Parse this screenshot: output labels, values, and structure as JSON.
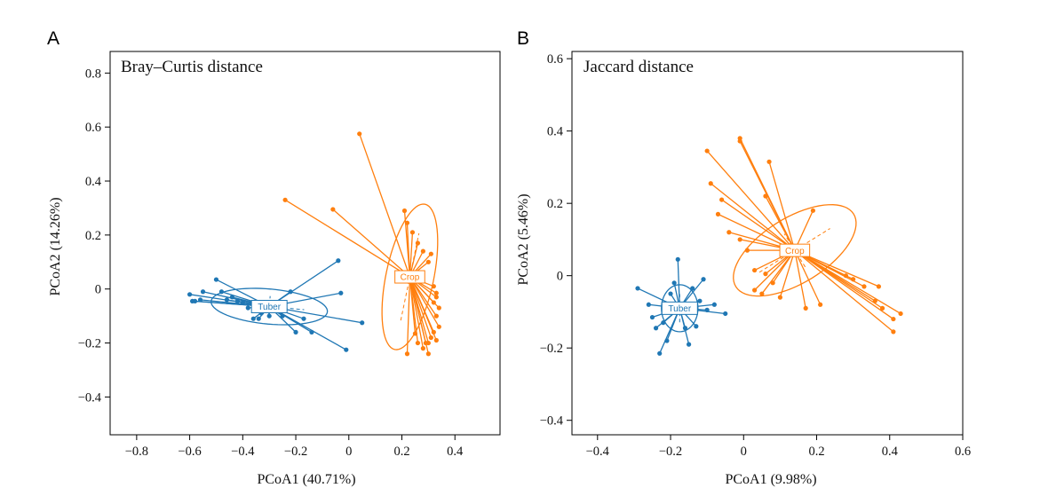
{
  "chart_data": [
    {
      "type": "scatter",
      "panel_letter": "A",
      "title": "Bray–Curtis distance",
      "xlabel": "PCoA1 (40.71%)",
      "ylabel": "PCoA2 (14.26%)",
      "xlim": [
        -0.9,
        0.57
      ],
      "ylim": [
        -0.54,
        0.88
      ],
      "xticks": [
        -0.8,
        -0.6,
        -0.4,
        -0.2,
        0,
        0.2,
        0.4
      ],
      "yticks": [
        -0.4,
        -0.2,
        0,
        0.2,
        0.4,
        0.6,
        0.8
      ],
      "xtick_labels": [
        "−0.8",
        "−0.6",
        "−0.4",
        "−0.2",
        "0",
        "0.2",
        "0.4"
      ],
      "ytick_labels": [
        "−0.4",
        "−0.2",
        "0",
        "0.2",
        "0.4",
        "0.6",
        "0.8"
      ],
      "grid": false,
      "series": [
        {
          "name": "Tuber",
          "color": "#1f77b4",
          "centroid": [
            -0.3,
            -0.065
          ],
          "ellipse": {
            "rx": 0.22,
            "ry": 0.065,
            "angle_deg": -5
          },
          "points": [
            [
              -0.59,
              -0.045
            ],
            [
              -0.6,
              -0.02
            ],
            [
              -0.58,
              -0.045
            ],
            [
              -0.56,
              -0.04
            ],
            [
              -0.55,
              -0.01
            ],
            [
              -0.5,
              0.035
            ],
            [
              -0.48,
              -0.01
            ],
            [
              -0.46,
              -0.04
            ],
            [
              -0.44,
              -0.03
            ],
            [
              -0.42,
              -0.045
            ],
            [
              -0.4,
              -0.05
            ],
            [
              -0.38,
              -0.07
            ],
            [
              -0.36,
              -0.11
            ],
            [
              -0.34,
              -0.11
            ],
            [
              -0.33,
              -0.09
            ],
            [
              -0.3,
              -0.1
            ],
            [
              -0.27,
              -0.06
            ],
            [
              -0.25,
              -0.1
            ],
            [
              -0.22,
              -0.01
            ],
            [
              -0.2,
              -0.16
            ],
            [
              -0.17,
              -0.11
            ],
            [
              -0.14,
              -0.16
            ],
            [
              -0.04,
              0.105
            ],
            [
              -0.03,
              -0.015
            ],
            [
              -0.01,
              -0.225
            ],
            [
              0.05,
              -0.125
            ]
          ]
        },
        {
          "name": "Crop",
          "color": "#ff7f0e",
          "centroid": [
            0.23,
            0.045
          ],
          "ellipse": {
            "rx": 0.275,
            "ry": 0.09,
            "angle_deg": 78
          },
          "points": [
            [
              -0.24,
              0.33
            ],
            [
              -0.06,
              0.295
            ],
            [
              0.04,
              0.575
            ],
            [
              0.21,
              0.29
            ],
            [
              0.22,
              0.245
            ],
            [
              0.24,
              0.21
            ],
            [
              0.26,
              0.17
            ],
            [
              0.28,
              0.14
            ],
            [
              0.3,
              0.1
            ],
            [
              0.31,
              0.13
            ],
            [
              0.32,
              0.01
            ],
            [
              0.33,
              -0.015
            ],
            [
              0.33,
              -0.03
            ],
            [
              0.32,
              -0.05
            ],
            [
              0.34,
              -0.07
            ],
            [
              0.33,
              -0.1
            ],
            [
              0.34,
              -0.14
            ],
            [
              0.32,
              -0.16
            ],
            [
              0.31,
              -0.18
            ],
            [
              0.33,
              -0.19
            ],
            [
              0.3,
              -0.2
            ],
            [
              0.29,
              -0.2
            ],
            [
              0.26,
              -0.2
            ],
            [
              0.28,
              -0.22
            ],
            [
              0.3,
              -0.24
            ],
            [
              0.25,
              -0.165
            ],
            [
              0.22,
              -0.24
            ]
          ]
        }
      ]
    },
    {
      "type": "scatter",
      "panel_letter": "B",
      "title": "Jaccard distance",
      "xlabel": "PCoA1 (9.98%)",
      "ylabel": "PCoA2 (5.46%)",
      "xlim": [
        -0.47,
        0.6
      ],
      "ylim": [
        -0.44,
        0.62
      ],
      "xticks": [
        -0.4,
        -0.2,
        0,
        0.2,
        0.4,
        0.6
      ],
      "yticks": [
        -0.4,
        -0.2,
        0,
        0.2,
        0.4,
        0.6
      ],
      "xtick_labels": [
        "−0.4",
        "−0.2",
        "0",
        "0.2",
        "0.4",
        "0.6"
      ],
      "ytick_labels": [
        "−0.4",
        "−0.2",
        "0",
        "0.2",
        "0.4",
        "0.6"
      ],
      "grid": false,
      "series": [
        {
          "name": "Tuber",
          "color": "#1f77b4",
          "centroid": [
            -0.175,
            -0.09
          ],
          "ellipse": {
            "rx": 0.05,
            "ry": 0.065,
            "angle_deg": 0
          },
          "points": [
            [
              -0.29,
              -0.035
            ],
            [
              -0.26,
              -0.08
            ],
            [
              -0.25,
              -0.115
            ],
            [
              -0.24,
              -0.145
            ],
            [
              -0.23,
              -0.215
            ],
            [
              -0.22,
              -0.13
            ],
            [
              -0.21,
              -0.18
            ],
            [
              -0.2,
              -0.05
            ],
            [
              -0.19,
              -0.02
            ],
            [
              -0.18,
              0.045
            ],
            [
              -0.17,
              -0.1
            ],
            [
              -0.16,
              -0.145
            ],
            [
              -0.15,
              -0.19
            ],
            [
              -0.14,
              -0.035
            ],
            [
              -0.13,
              -0.14
            ],
            [
              -0.12,
              -0.07
            ],
            [
              -0.11,
              -0.01
            ],
            [
              -0.1,
              -0.095
            ],
            [
              -0.08,
              -0.08
            ],
            [
              -0.05,
              -0.105
            ]
          ]
        },
        {
          "name": "Crop",
          "color": "#ff7f0e",
          "centroid": [
            0.14,
            0.07
          ],
          "ellipse": {
            "rx": 0.19,
            "ry": 0.09,
            "angle_deg": 32
          },
          "points": [
            [
              -0.1,
              0.345
            ],
            [
              -0.09,
              0.255
            ],
            [
              -0.07,
              0.17
            ],
            [
              -0.06,
              0.21
            ],
            [
              -0.01,
              0.38
            ],
            [
              -0.01,
              0.372
            ],
            [
              -0.04,
              0.12
            ],
            [
              -0.01,
              0.1
            ],
            [
              0.01,
              0.07
            ],
            [
              0.03,
              0.015
            ],
            [
              0.06,
              0.005
            ],
            [
              0.08,
              -0.02
            ],
            [
              0.03,
              -0.04
            ],
            [
              0.05,
              -0.05
            ],
            [
              0.1,
              -0.06
            ],
            [
              0.07,
              0.315
            ],
            [
              0.06,
              0.22
            ],
            [
              0.19,
              0.18
            ],
            [
              0.17,
              -0.09
            ],
            [
              0.21,
              -0.08
            ],
            [
              0.28,
              0.0
            ],
            [
              0.3,
              -0.01
            ],
            [
              0.33,
              -0.03
            ],
            [
              0.36,
              -0.07
            ],
            [
              0.37,
              -0.03
            ],
            [
              0.38,
              -0.09
            ],
            [
              0.41,
              -0.12
            ],
            [
              0.41,
              -0.155
            ],
            [
              0.43,
              -0.105
            ]
          ]
        }
      ]
    }
  ]
}
